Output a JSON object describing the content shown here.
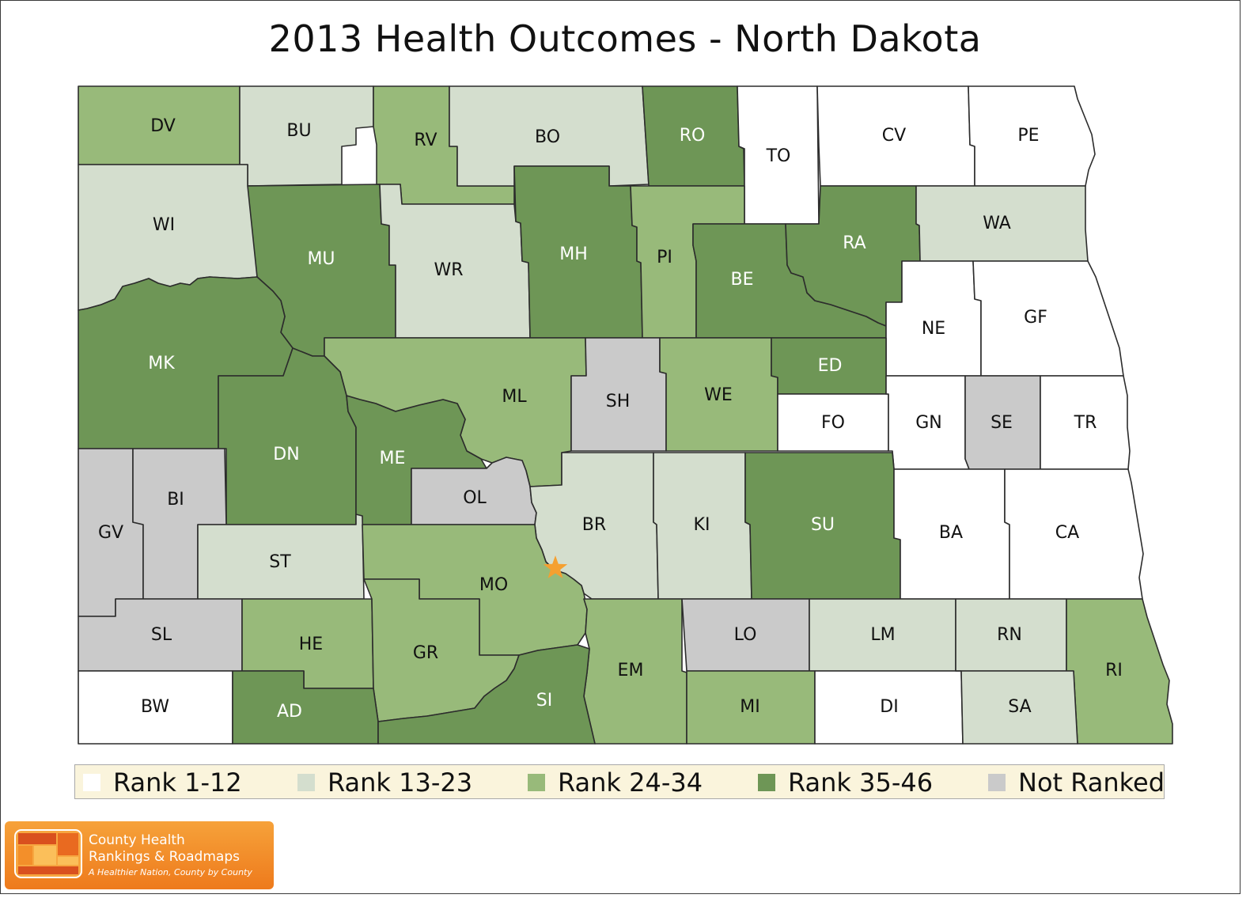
{
  "title": "2013 Health Outcomes - North Dakota",
  "colors": {
    "rank_1_12": "#ffffff",
    "rank_13_23": "#d4dece",
    "rank_24_34": "#98ba7a",
    "rank_35_46": "#6e9656",
    "not_ranked": "#cacaca",
    "capital_star": "#f5a030"
  },
  "legend": [
    {
      "label": "Rank 1-12",
      "color": "#ffffff"
    },
    {
      "label": "Rank 13-23",
      "color": "#d4dece"
    },
    {
      "label": "Rank 24-34",
      "color": "#98ba7a"
    },
    {
      "label": "Rank 35-46",
      "color": "#6e9656"
    },
    {
      "label": "Not Ranked",
      "color": "#cacaca"
    }
  ],
  "counties": [
    {
      "code": "DV",
      "rank_group": "Rank 24-34"
    },
    {
      "code": "BU",
      "rank_group": "Rank 13-23"
    },
    {
      "code": "RV",
      "rank_group": "Rank 24-34"
    },
    {
      "code": "BO",
      "rank_group": "Rank 13-23"
    },
    {
      "code": "RO",
      "rank_group": "Rank 35-46"
    },
    {
      "code": "TO",
      "rank_group": "Rank 1-12"
    },
    {
      "code": "CV",
      "rank_group": "Rank 1-12"
    },
    {
      "code": "PE",
      "rank_group": "Rank 1-12"
    },
    {
      "code": "WI",
      "rank_group": "Rank 13-23"
    },
    {
      "code": "MU",
      "rank_group": "Rank 35-46"
    },
    {
      "code": "WR",
      "rank_group": "Rank 13-23"
    },
    {
      "code": "MH",
      "rank_group": "Rank 35-46"
    },
    {
      "code": "PI",
      "rank_group": "Rank 24-34"
    },
    {
      "code": "BE",
      "rank_group": "Rank 35-46"
    },
    {
      "code": "RA",
      "rank_group": "Rank 35-46"
    },
    {
      "code": "WA",
      "rank_group": "Rank 13-23"
    },
    {
      "code": "NE",
      "rank_group": "Rank 1-12"
    },
    {
      "code": "GF",
      "rank_group": "Rank 1-12"
    },
    {
      "code": "MK",
      "rank_group": "Rank 35-46"
    },
    {
      "code": "ML",
      "rank_group": "Rank 24-34"
    },
    {
      "code": "SH",
      "rank_group": "Not Ranked"
    },
    {
      "code": "WE",
      "rank_group": "Rank 24-34"
    },
    {
      "code": "ED",
      "rank_group": "Rank 35-46"
    },
    {
      "code": "FO",
      "rank_group": "Rank 1-12"
    },
    {
      "code": "GN",
      "rank_group": "Rank 1-12"
    },
    {
      "code": "SE",
      "rank_group": "Not Ranked"
    },
    {
      "code": "TR",
      "rank_group": "Rank 1-12"
    },
    {
      "code": "DN",
      "rank_group": "Rank 35-46"
    },
    {
      "code": "ME",
      "rank_group": "Rank 35-46"
    },
    {
      "code": "OL",
      "rank_group": "Not Ranked"
    },
    {
      "code": "BR",
      "rank_group": "Rank 13-23"
    },
    {
      "code": "KI",
      "rank_group": "Rank 13-23"
    },
    {
      "code": "SU",
      "rank_group": "Rank 35-46"
    },
    {
      "code": "BA",
      "rank_group": "Rank 1-12"
    },
    {
      "code": "CA",
      "rank_group": "Rank 1-12"
    },
    {
      "code": "GV",
      "rank_group": "Not Ranked"
    },
    {
      "code": "BI",
      "rank_group": "Not Ranked"
    },
    {
      "code": "ST",
      "rank_group": "Rank 13-23"
    },
    {
      "code": "MO",
      "rank_group": "Rank 24-34"
    },
    {
      "code": "SL",
      "rank_group": "Not Ranked"
    },
    {
      "code": "HE",
      "rank_group": "Rank 24-34"
    },
    {
      "code": "GR",
      "rank_group": "Rank 24-34"
    },
    {
      "code": "EM",
      "rank_group": "Rank 24-34"
    },
    {
      "code": "LO",
      "rank_group": "Not Ranked"
    },
    {
      "code": "LM",
      "rank_group": "Rank 13-23"
    },
    {
      "code": "RN",
      "rank_group": "Rank 13-23"
    },
    {
      "code": "RI",
      "rank_group": "Rank 24-34"
    },
    {
      "code": "BW",
      "rank_group": "Rank 1-12"
    },
    {
      "code": "AD",
      "rank_group": "Rank 35-46"
    },
    {
      "code": "SI",
      "rank_group": "Rank 35-46"
    },
    {
      "code": "MI",
      "rank_group": "Rank 24-34"
    },
    {
      "code": "DI",
      "rank_group": "Rank 1-12"
    },
    {
      "code": "SA",
      "rank_group": "Rank 13-23"
    }
  ],
  "logo": {
    "name": "County Health\nRankings & Roadmaps",
    "tagline": "A Healthier Nation, County by County"
  }
}
